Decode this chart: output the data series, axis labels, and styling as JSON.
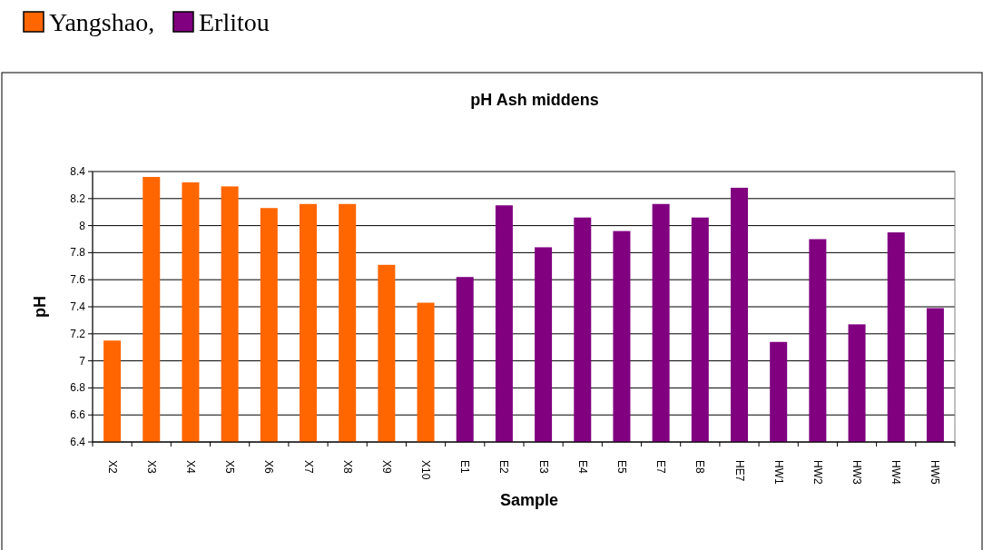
{
  "chart_data": {
    "type": "bar",
    "title": "pH Ash middens",
    "xlabel": "Sample",
    "ylabel": "pH",
    "categories": [
      "X2",
      "X3",
      "X4",
      "X5",
      "X6",
      "X7",
      "X8",
      "X9",
      "X10",
      "E1",
      "E2",
      "E3",
      "E4",
      "E5",
      "E7",
      "E8",
      "HE7",
      "HW1",
      "HW2",
      "HW3",
      "HW4",
      "HW5"
    ],
    "series": [
      {
        "name": "Yangshao,",
        "color": "#ff6600",
        "values": [
          7.15,
          8.36,
          8.32,
          8.29,
          8.13,
          8.16,
          8.16,
          7.71,
          7.43,
          null,
          null,
          null,
          null,
          null,
          null,
          null,
          null,
          null,
          null,
          null,
          null,
          null
        ]
      },
      {
        "name": "Erlitou",
        "color": "#800080",
        "values": [
          null,
          null,
          null,
          null,
          null,
          null,
          null,
          null,
          null,
          7.62,
          8.15,
          7.84,
          8.06,
          7.96,
          8.16,
          8.06,
          8.28,
          7.14,
          7.9,
          7.27,
          7.95,
          7.39
        ]
      }
    ],
    "ylim": [
      6.4,
      8.4
    ],
    "yticks": [
      6.4,
      6.6,
      6.8,
      7,
      7.2,
      7.4,
      7.6,
      7.8,
      8,
      8.2,
      8.4
    ],
    "grid": "y",
    "legend": "top left"
  }
}
